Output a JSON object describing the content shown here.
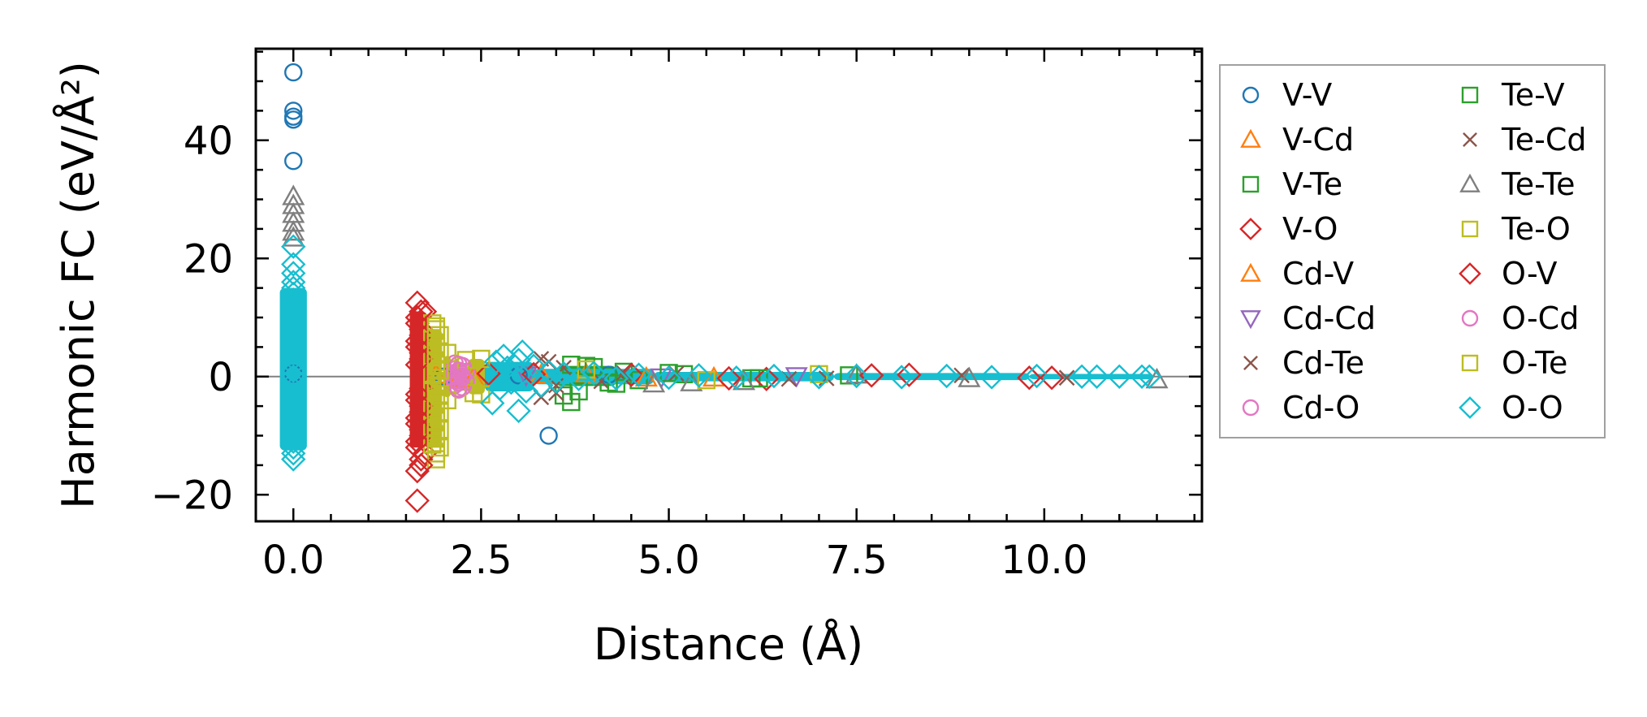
{
  "chart_data": {
    "type": "scatter",
    "xlabel": "Distance (Å)",
    "ylabel": "Harmonic FC (eV/Å²)",
    "xlim": [
      -0.5,
      12.1
    ],
    "ylim": [
      -24.5,
      55.5
    ],
    "x_ticks": [
      0.0,
      2.5,
      5.0,
      7.5,
      10.0
    ],
    "x_tick_labels": [
      "0.0",
      "2.5",
      "5.0",
      "7.5",
      "10.0"
    ],
    "y_ticks": [
      -20,
      0,
      20,
      40
    ],
    "y_tick_labels": [
      "−20",
      "0",
      "20",
      "40"
    ],
    "zero_line": 0,
    "grid": false,
    "legend_position": "outside-right",
    "legend_columns": 2,
    "series": [
      {
        "name": "V-V",
        "marker": "circle",
        "color": "#1f77b4",
        "points": [
          [
            0,
            51.5
          ],
          [
            0,
            45
          ],
          [
            0,
            44
          ],
          [
            0,
            43.5
          ],
          [
            0,
            36.5
          ],
          [
            3.4,
            -10
          ],
          [
            0,
            0.5
          ],
          [
            2.0,
            0
          ],
          [
            3.0,
            0.2
          ],
          [
            4.2,
            0.3
          ]
        ]
      },
      {
        "name": "V-Cd",
        "marker": "triangle-up",
        "color": "#ff7f0e",
        "points": [
          [
            1.9,
            0.3
          ],
          [
            2.4,
            -0.2
          ],
          [
            3.9,
            0.4
          ],
          [
            5.6,
            -0.2
          ]
        ]
      },
      {
        "name": "V-Te",
        "marker": "square",
        "color": "#2ca02c",
        "points": [
          [
            3.6,
            -3.2
          ],
          [
            3.7,
            2.0
          ],
          [
            3.8,
            -2.5
          ],
          [
            4.0,
            1.6
          ],
          [
            4.2,
            -1.0
          ],
          [
            4.4,
            0.8
          ],
          [
            4.6,
            -0.6
          ],
          [
            5.2,
            0.4
          ],
          [
            6.1,
            -0.3
          ],
          [
            7.4,
            0.2
          ]
        ]
      },
      {
        "name": "V-O",
        "marker": "diamond",
        "color": "#d62728",
        "points": [
          [
            1.65,
            12.5
          ],
          [
            1.65,
            10
          ],
          [
            1.7,
            8
          ],
          [
            1.65,
            6
          ],
          [
            1.7,
            4
          ],
          [
            1.65,
            2
          ],
          [
            1.7,
            -2
          ],
          [
            1.65,
            -4
          ],
          [
            1.7,
            -6
          ],
          [
            1.65,
            -8
          ],
          [
            1.7,
            -10
          ],
          [
            1.65,
            -12
          ],
          [
            1.7,
            -14
          ],
          [
            1.65,
            -16
          ],
          [
            1.65,
            -21
          ],
          [
            1.75,
            11
          ],
          [
            1.75,
            -13
          ],
          [
            2.6,
            0.5
          ],
          [
            4.5,
            0.3
          ],
          [
            6.3,
            -0.4
          ],
          [
            8.2,
            0.3
          ],
          [
            9.8,
            -0.2
          ]
        ]
      },
      {
        "name": "Cd-V",
        "marker": "triangle-up",
        "color": "#ff7f0e",
        "points": [
          [
            2.2,
            -0.3
          ],
          [
            3.3,
            0.3
          ],
          [
            4.7,
            -0.2
          ]
        ]
      },
      {
        "name": "Cd-Cd",
        "marker": "triangle-down",
        "color": "#9467bd",
        "points": [
          [
            3.1,
            0.2
          ],
          [
            4.9,
            -0.1
          ],
          [
            6.7,
            0.1
          ]
        ]
      },
      {
        "name": "Cd-Te",
        "marker": "x",
        "color": "#8c564b",
        "points": [
          [
            3.3,
            -3.5
          ],
          [
            3.4,
            2.5
          ],
          [
            3.5,
            -1.5
          ],
          [
            3.6,
            1.5
          ],
          [
            4.1,
            -0.8
          ],
          [
            5.1,
            0.5
          ],
          [
            6.6,
            -0.4
          ],
          [
            8.9,
            0.2
          ],
          [
            10.3,
            -0.2
          ]
        ]
      },
      {
        "name": "Cd-O",
        "marker": "circle",
        "color": "#e377c2",
        "points": [
          [
            2.15,
            2.2
          ],
          [
            2.15,
            1.2
          ],
          [
            2.15,
            0.4
          ],
          [
            2.15,
            -0.5
          ],
          [
            2.15,
            -1.4
          ],
          [
            2.2,
            -2.2
          ],
          [
            2.25,
            1.8
          ],
          [
            2.25,
            -1.8
          ],
          [
            2.3,
            0.8
          ],
          [
            2.3,
            -0.9
          ]
        ]
      },
      {
        "name": "Te-V",
        "marker": "square",
        "color": "#2ca02c",
        "points": [
          [
            3.7,
            -4.3
          ],
          [
            3.9,
            1.8
          ],
          [
            4.3,
            -1.2
          ],
          [
            5.0,
            0.6
          ],
          [
            6.2,
            -0.3
          ]
        ]
      },
      {
        "name": "Te-Cd",
        "marker": "x",
        "color": "#8c564b",
        "points": [
          [
            3.3,
            3.0
          ],
          [
            3.5,
            -2.8
          ],
          [
            4.4,
            0.6
          ],
          [
            7.1,
            -0.3
          ]
        ]
      },
      {
        "name": "Te-Te",
        "marker": "triangle-up",
        "color": "#7f7f7f",
        "points": [
          [
            0,
            30.5
          ],
          [
            0,
            29
          ],
          [
            0,
            27.5
          ],
          [
            0,
            26
          ],
          [
            0,
            24.5
          ],
          [
            0,
            23.5
          ],
          [
            4.8,
            -1.2
          ],
          [
            5.3,
            -1.0
          ],
          [
            6.0,
            -0.8
          ],
          [
            7.5,
            0.3
          ],
          [
            9.0,
            -0.3
          ],
          [
            11.5,
            -0.5
          ]
        ]
      },
      {
        "name": "Te-O",
        "marker": "square",
        "color": "#bcbd22",
        "points": [
          [
            1.85,
            9
          ],
          [
            1.9,
            8
          ],
          [
            1.85,
            6.5
          ],
          [
            1.9,
            5
          ],
          [
            1.85,
            3.5
          ],
          [
            1.9,
            2
          ],
          [
            1.85,
            0.5
          ],
          [
            1.9,
            -1
          ],
          [
            1.85,
            -2.5
          ],
          [
            1.9,
            -4
          ],
          [
            1.85,
            -5.5
          ],
          [
            1.9,
            -7
          ],
          [
            1.85,
            -8.5
          ],
          [
            1.9,
            -10
          ],
          [
            1.85,
            -11.5
          ],
          [
            1.9,
            -13
          ],
          [
            1.9,
            -14
          ],
          [
            2.05,
            4
          ],
          [
            2.05,
            -4
          ],
          [
            2.3,
            2.8
          ],
          [
            2.4,
            -2.8
          ],
          [
            2.5,
            3
          ],
          [
            2.5,
            -3
          ],
          [
            3.9,
            1.2
          ],
          [
            5.5,
            -0.6
          ],
          [
            7.0,
            0.4
          ]
        ]
      },
      {
        "name": "O-V",
        "marker": "diamond",
        "color": "#d62728",
        "points": [
          [
            1.7,
            11
          ],
          [
            1.65,
            9
          ],
          [
            1.7,
            7
          ],
          [
            1.65,
            5
          ],
          [
            1.7,
            3
          ],
          [
            1.65,
            -3
          ],
          [
            1.7,
            -5
          ],
          [
            1.65,
            -7
          ],
          [
            1.7,
            -9
          ],
          [
            1.65,
            -11
          ],
          [
            1.7,
            -15
          ],
          [
            3.2,
            0.4
          ],
          [
            5.8,
            -0.3
          ],
          [
            7.7,
            0.2
          ],
          [
            10.1,
            -0.2
          ]
        ]
      },
      {
        "name": "O-Cd",
        "marker": "circle",
        "color": "#e377c2",
        "points": [
          [
            2.2,
            2.0
          ],
          [
            2.2,
            1.0
          ],
          [
            2.2,
            -1.0
          ],
          [
            2.2,
            -2.0
          ],
          [
            2.25,
            0.0
          ]
        ]
      },
      {
        "name": "O-Te",
        "marker": "square",
        "color": "#bcbd22",
        "points": [
          [
            1.9,
            8.5
          ],
          [
            1.95,
            7
          ],
          [
            1.9,
            5.5
          ],
          [
            1.95,
            4
          ],
          [
            1.9,
            2.5
          ],
          [
            1.95,
            1
          ],
          [
            1.9,
            -1.5
          ],
          [
            1.95,
            -3
          ],
          [
            1.9,
            -4.5
          ],
          [
            1.95,
            -6
          ],
          [
            1.9,
            -7.5
          ],
          [
            1.95,
            -9
          ],
          [
            1.9,
            -10.5
          ],
          [
            1.95,
            -12
          ]
        ]
      },
      {
        "name": "O-O",
        "marker": "diamond",
        "color": "#17becf",
        "points": [
          [
            0,
            22
          ],
          [
            0,
            19
          ],
          [
            0,
            17.5
          ],
          [
            0,
            16
          ],
          [
            0,
            15
          ],
          [
            0,
            14
          ],
          [
            0,
            13
          ],
          [
            0,
            12
          ],
          [
            0,
            11
          ],
          [
            0,
            10
          ],
          [
            0,
            9
          ],
          [
            0,
            8
          ],
          [
            0,
            7
          ],
          [
            0,
            6
          ],
          [
            0,
            5
          ],
          [
            0,
            4
          ],
          [
            0,
            3
          ],
          [
            0,
            2
          ],
          [
            0,
            1
          ],
          [
            0,
            0
          ],
          [
            0,
            -1
          ],
          [
            0,
            -2
          ],
          [
            0,
            -3
          ],
          [
            0,
            -4
          ],
          [
            0,
            -5
          ],
          [
            0,
            -6
          ],
          [
            0,
            -7
          ],
          [
            0,
            -8
          ],
          [
            0,
            -9
          ],
          [
            0,
            -10
          ],
          [
            0,
            -11
          ],
          [
            0,
            -12
          ],
          [
            0,
            -13
          ],
          [
            0,
            -14
          ],
          [
            2.65,
            -4.5
          ],
          [
            2.7,
            2.5
          ],
          [
            2.75,
            -2.0
          ],
          [
            2.8,
            3.5
          ],
          [
            2.85,
            1.5
          ],
          [
            2.9,
            -1.0
          ],
          [
            3.0,
            -5.8
          ],
          [
            3.0,
            2.8
          ],
          [
            3.05,
            4.2
          ],
          [
            3.1,
            -2.5
          ],
          [
            3.2,
            1.8
          ],
          [
            3.3,
            -1.5
          ],
          [
            3.4,
            0.8
          ],
          [
            3.5,
            -0.8
          ],
          [
            3.6,
            0.5
          ],
          [
            3.8,
            -0.4
          ],
          [
            4.0,
            0.6
          ],
          [
            4.3,
            -0.3
          ],
          [
            4.6,
            0.3
          ],
          [
            5.0,
            -0.2
          ],
          [
            5.4,
            0.2
          ],
          [
            5.9,
            -0.2
          ],
          [
            6.4,
            0.1
          ],
          [
            7.0,
            -0.1
          ],
          [
            7.5,
            0.1
          ],
          [
            8.1,
            -0.1
          ],
          [
            8.7,
            0.1
          ],
          [
            9.3,
            -0.1
          ],
          [
            9.9,
            0.1
          ],
          [
            10.5,
            0
          ],
          [
            10.7,
            0
          ],
          [
            11.0,
            0
          ],
          [
            11.3,
            0
          ],
          [
            11.4,
            0
          ]
        ]
      }
    ]
  }
}
